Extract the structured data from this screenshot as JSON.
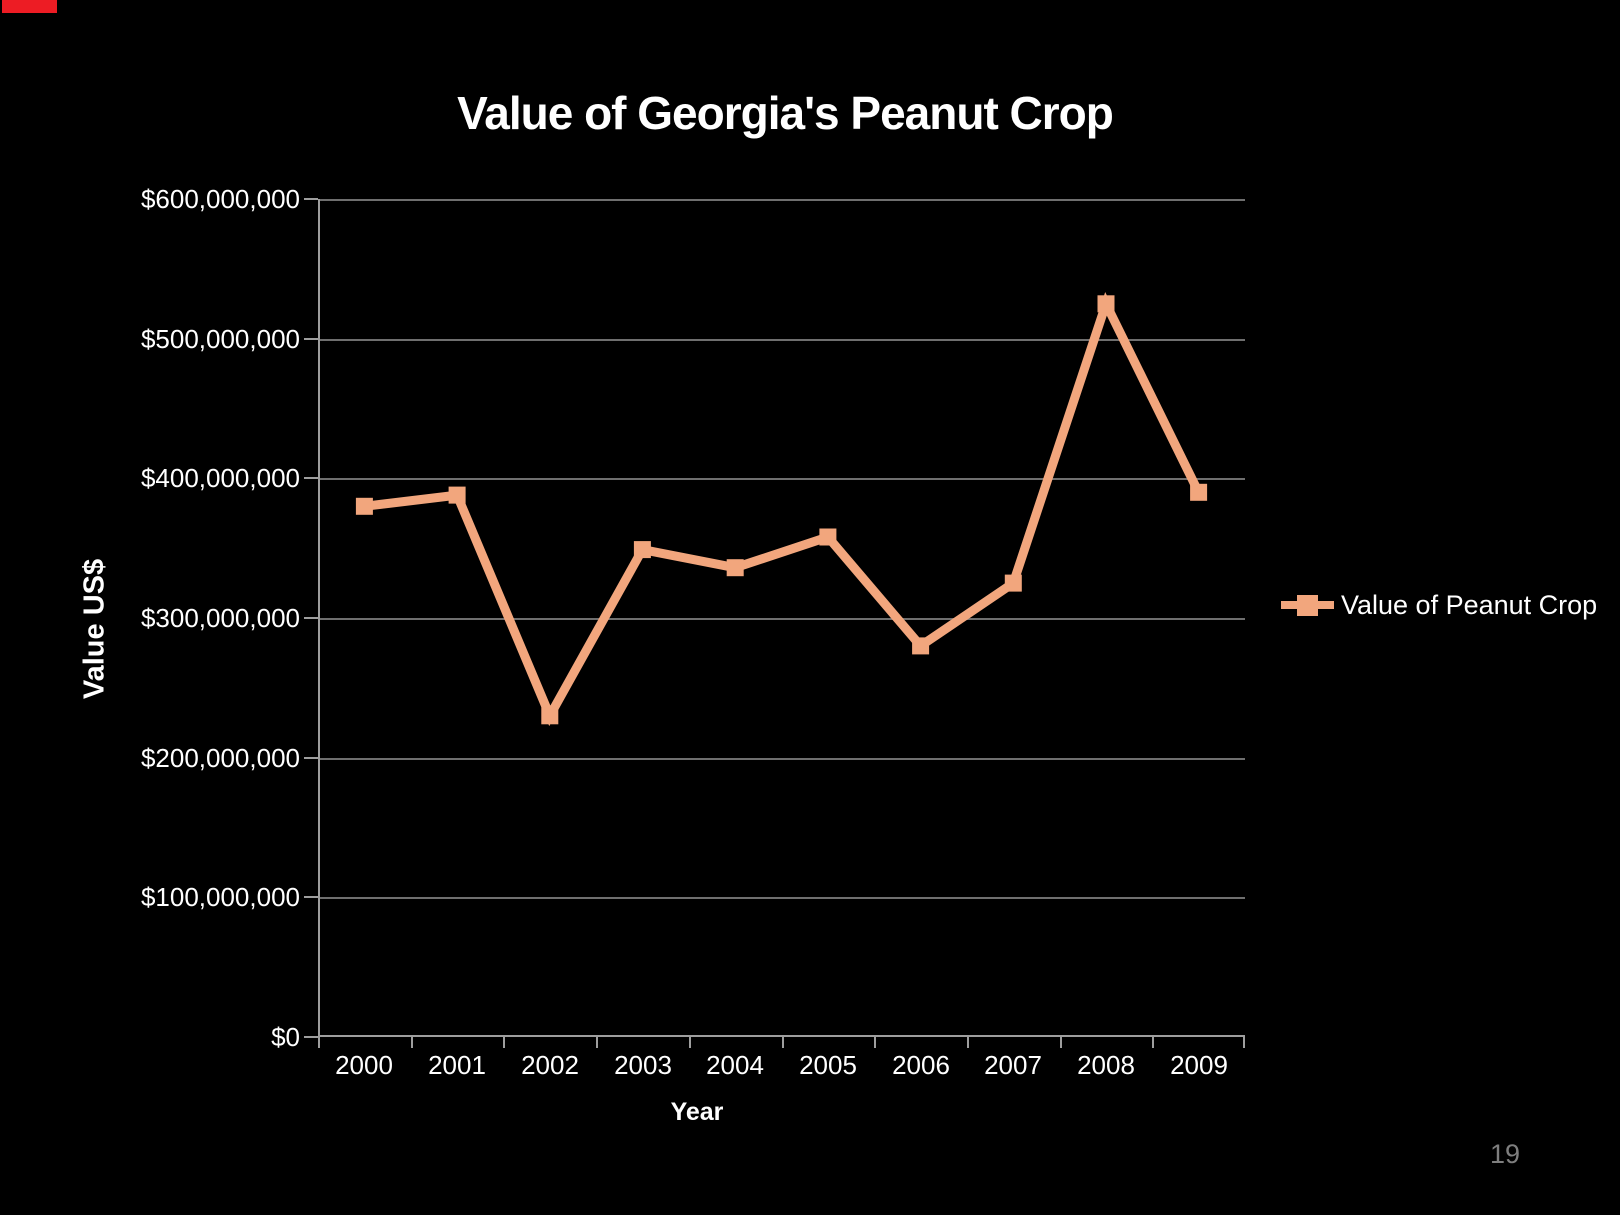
{
  "slide": {
    "page_number": "19"
  },
  "colors": {
    "background": "#000000",
    "series_line": "#F2A67D",
    "gridline": "#6f6f6f",
    "axis_line": "#9e9e9e",
    "text": "#ffffff",
    "page_number_text": "#7e7e7e",
    "corner_mark_red": "#ed1c24"
  },
  "chart_data": {
    "type": "line",
    "title": "Value of Georgia's Peanut Crop",
    "xlabel": "Year",
    "ylabel": "Value US$",
    "categories": [
      "2000",
      "2001",
      "2002",
      "2003",
      "2004",
      "2005",
      "2006",
      "2007",
      "2008",
      "2009"
    ],
    "series": [
      {
        "name": "Value of Peanut Crop",
        "values_usd_millions": [
          380,
          388,
          230,
          349,
          336,
          358,
          280,
          325,
          525,
          390
        ]
      }
    ],
    "ylim_usd_millions": [
      0,
      600
    ],
    "ytick_labels": [
      "$600,000,000",
      "$500,000,000",
      "$400,000,000",
      "$300,000,000",
      "$200,000,000",
      "$100,000,000",
      "$0"
    ],
    "grid": "horizontal gridlines on",
    "legend_position": "right",
    "marker": "square",
    "line_color": "#F2A67D"
  },
  "legend": {
    "label": "Value of Peanut Crop"
  }
}
